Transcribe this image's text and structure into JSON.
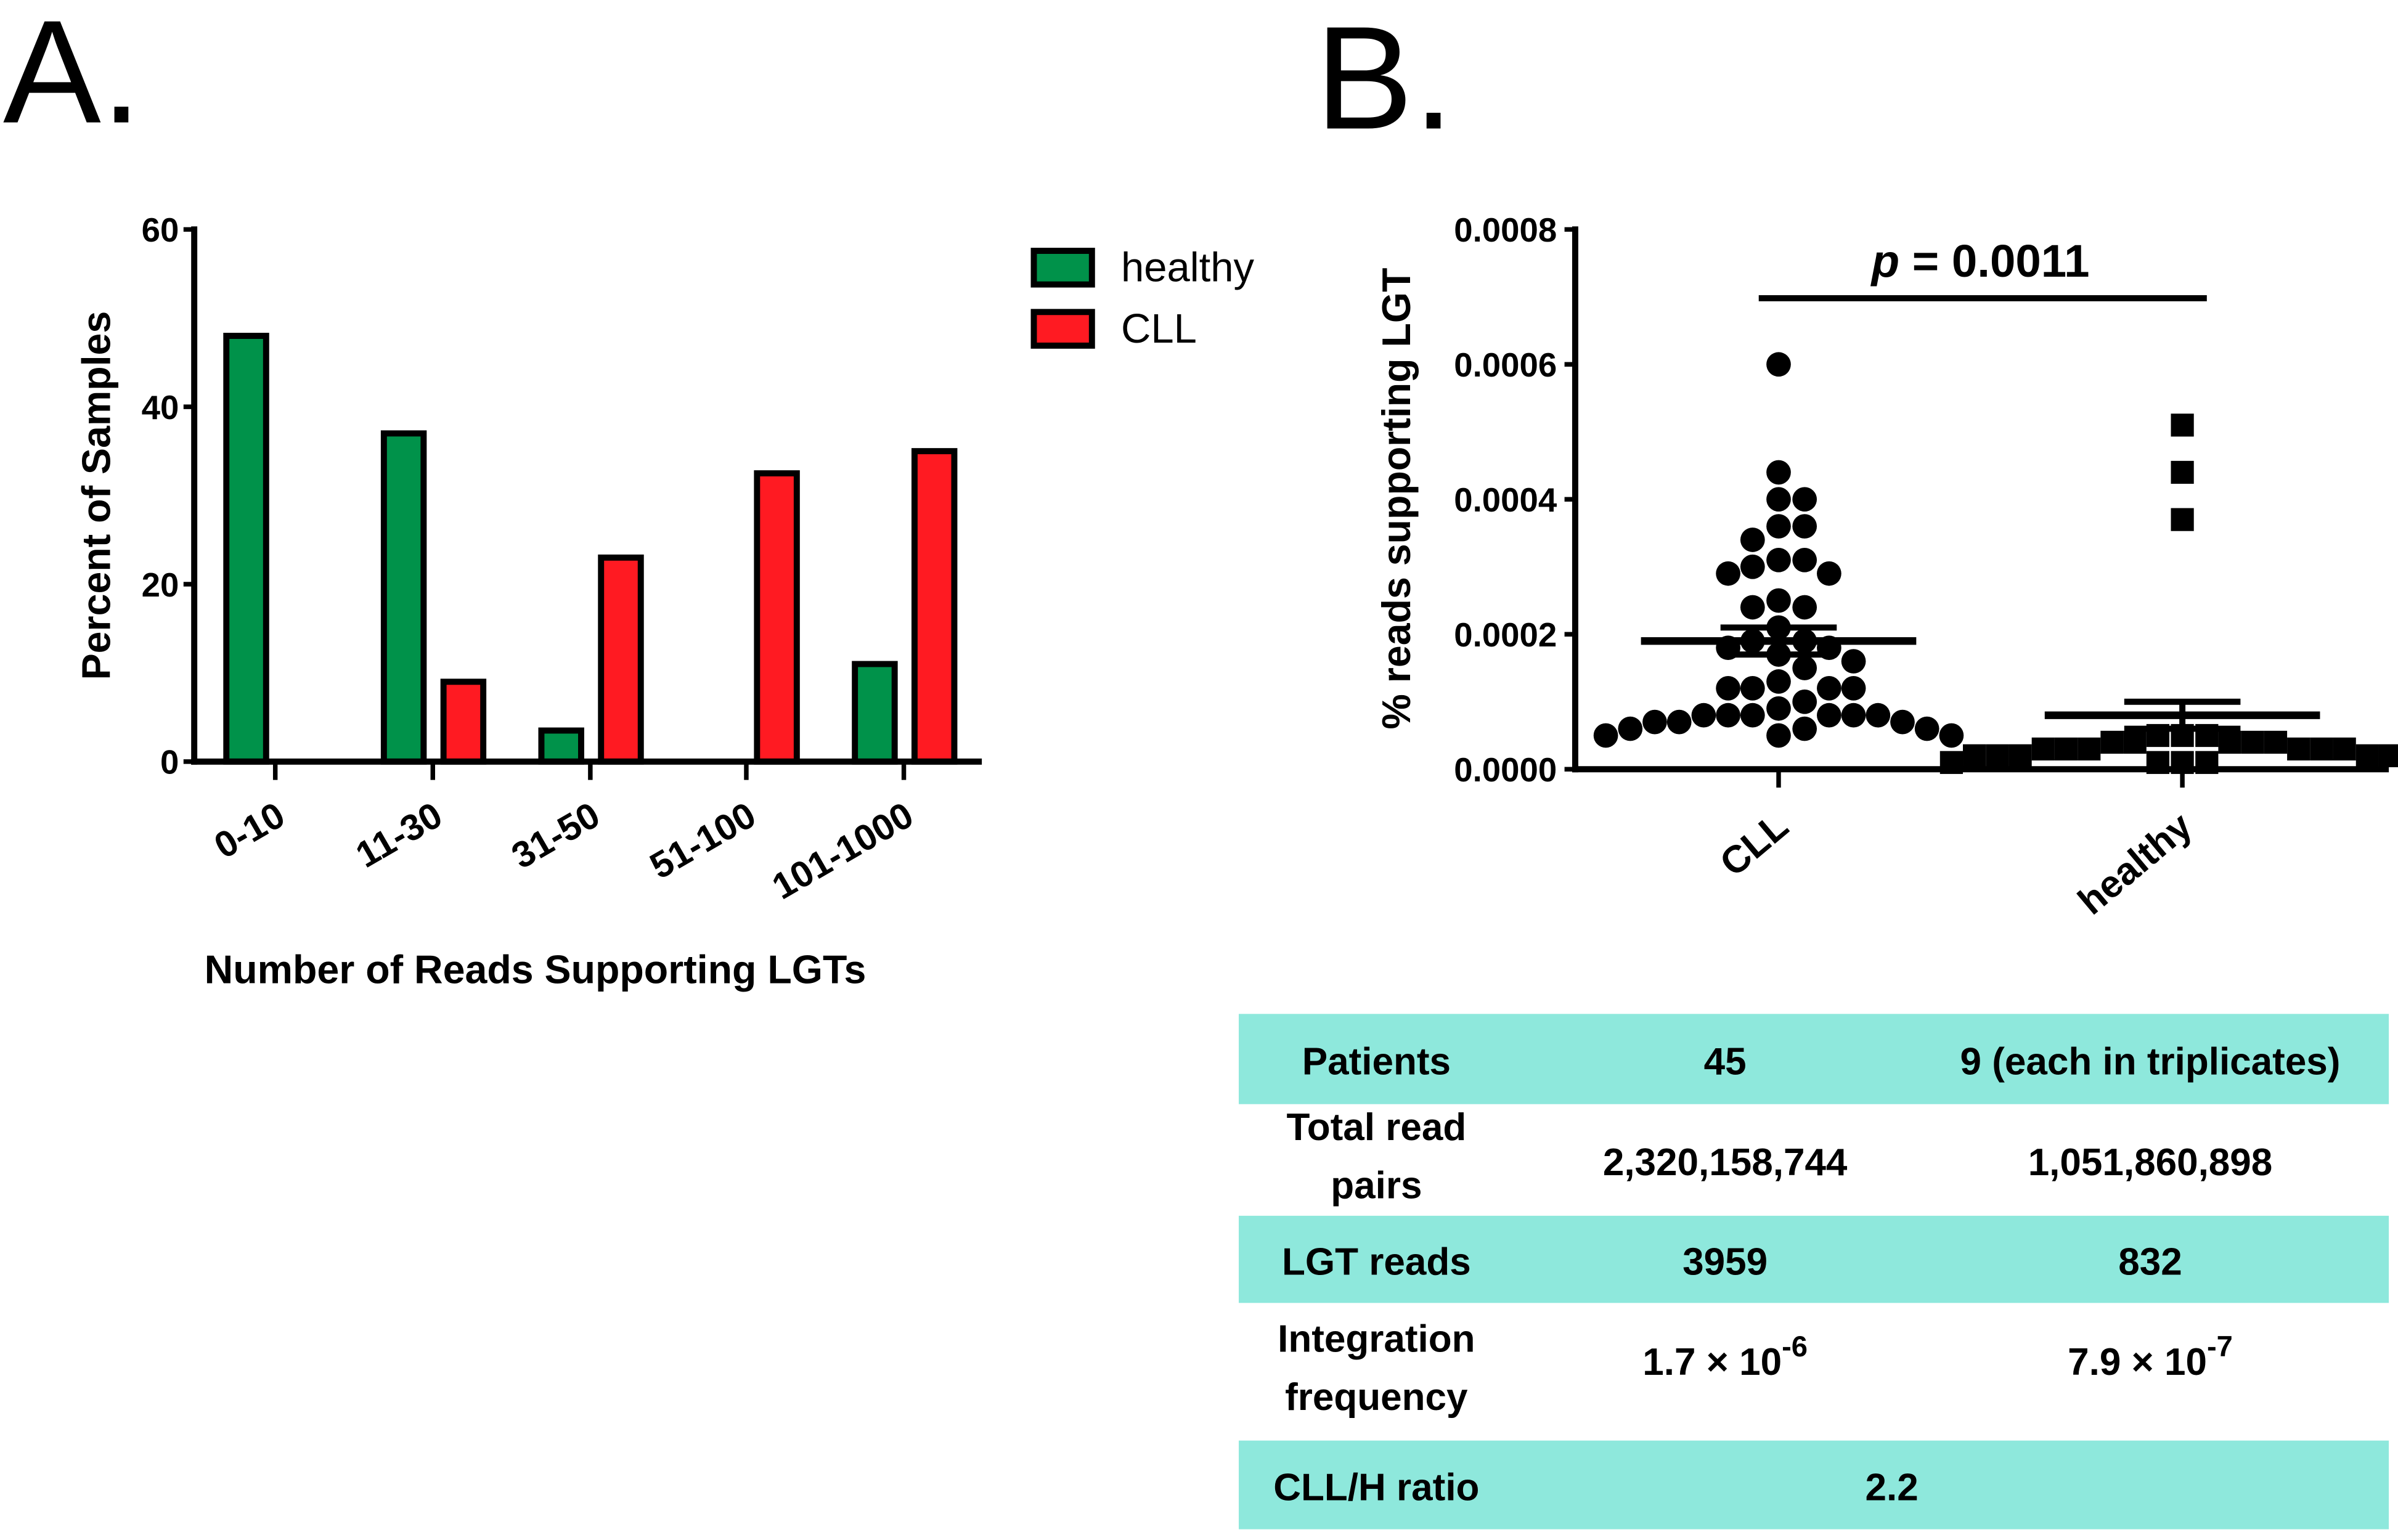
{
  "panel_a_label": "A.",
  "panel_b_label": "B.",
  "chart_data": [
    {
      "type": "bar",
      "title": "",
      "xlabel": "Number of Reads Supporting LGTs",
      "ylabel": "Percent of Samples",
      "ylim": [
        0,
        60
      ],
      "yticks": [
        "0",
        "20",
        "40",
        "60"
      ],
      "categories": [
        "0-10",
        "11-30",
        "31-50",
        "51-100",
        "101-1000"
      ],
      "series": [
        {
          "name": "healthy",
          "color": "#00924a",
          "values": [
            48,
            37,
            3.5,
            0,
            11
          ]
        },
        {
          "name": "CLL",
          "color": "#ff1a22",
          "values": [
            0,
            9,
            23,
            32.5,
            35
          ]
        }
      ],
      "legend_placement": "top-right",
      "grid": false
    },
    {
      "type": "scatter",
      "ylabel": "% reads supporting LGT",
      "ylim": [
        0,
        0.0008
      ],
      "yticks": [
        "0.0000",
        "0.0002",
        "0.0004",
        "0.0006",
        "0.0008"
      ],
      "categories": [
        "CLL",
        "healthy"
      ],
      "annotation": {
        "p_symbol": "p",
        "p_text": " = 0.0011"
      },
      "series": [
        {
          "name": "CLL",
          "marker": "circle",
          "mean": 0.00019,
          "sem": [
            0.00017,
            0.00021
          ],
          "values": [
            0.0006,
            0.00044,
            0.0004,
            0.0004,
            0.00036,
            0.00036,
            0.00034,
            0.00031,
            0.00031,
            0.0003,
            0.00029,
            0.00029,
            0.00025,
            0.00024,
            0.00024,
            0.00021,
            0.00019,
            0.00019,
            0.00018,
            0.00018,
            0.00017,
            0.00016,
            0.00015,
            0.00013,
            0.00012,
            0.00012,
            0.00012,
            0.00012,
            0.0001,
            9e-05,
            8e-05,
            8e-05,
            8e-05,
            8e-05,
            8e-05,
            8e-05,
            7e-05,
            7e-05,
            7e-05,
            6e-05,
            6e-05,
            6e-05,
            5e-05,
            5e-05,
            5e-05
          ]
        },
        {
          "name": "healthy",
          "marker": "square",
          "mean": 8e-05,
          "sem": [
            6e-05,
            0.0001
          ],
          "values": [
            0.00051,
            0.00044,
            0.00037,
            5e-05,
            5e-05,
            5e-05,
            4e-05,
            4e-05,
            4e-05,
            4e-05,
            4e-05,
            3e-05,
            3e-05,
            3e-05,
            3e-05,
            3e-05,
            3e-05,
            2e-05,
            2e-05,
            2e-05,
            2e-05,
            2e-05,
            2e-05,
            1e-05,
            1e-05,
            1e-05,
            1e-05
          ]
        }
      ]
    }
  ],
  "table": {
    "rows": [
      {
        "label": [
          "Patients"
        ],
        "cll": "45",
        "healthy": "9 (each in triplicates)",
        "shaded": true
      },
      {
        "label": [
          "Total read",
          "pairs"
        ],
        "cll": "2,320,158,744",
        "healthy": "1,051,860,898",
        "shaded": false
      },
      {
        "label": [
          "LGT reads"
        ],
        "cll": "3959",
        "healthy": "832",
        "shaded": true
      },
      {
        "label": [
          "Integration",
          "frequency"
        ],
        "cll": "1.7 × 10",
        "cll_exp": "-6",
        "healthy": "7.9 × 10",
        "healthy_exp": "-7",
        "shaded": false
      },
      {
        "label": [
          "CLL/H ratio"
        ],
        "merged": "2.2",
        "shaded": true
      }
    ],
    "shade_color": "#8ee8dc"
  }
}
